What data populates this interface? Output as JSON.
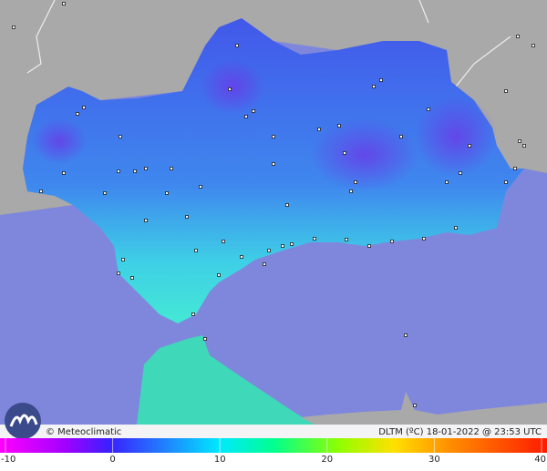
{
  "footer": {
    "credit": "© Meteoclimatic",
    "caption": "DLTM (ºC)  18-01-2022 @ 23:53 UTC"
  },
  "legend": {
    "ticks": [
      -10,
      0,
      10,
      20,
      30,
      40
    ]
  }
}
